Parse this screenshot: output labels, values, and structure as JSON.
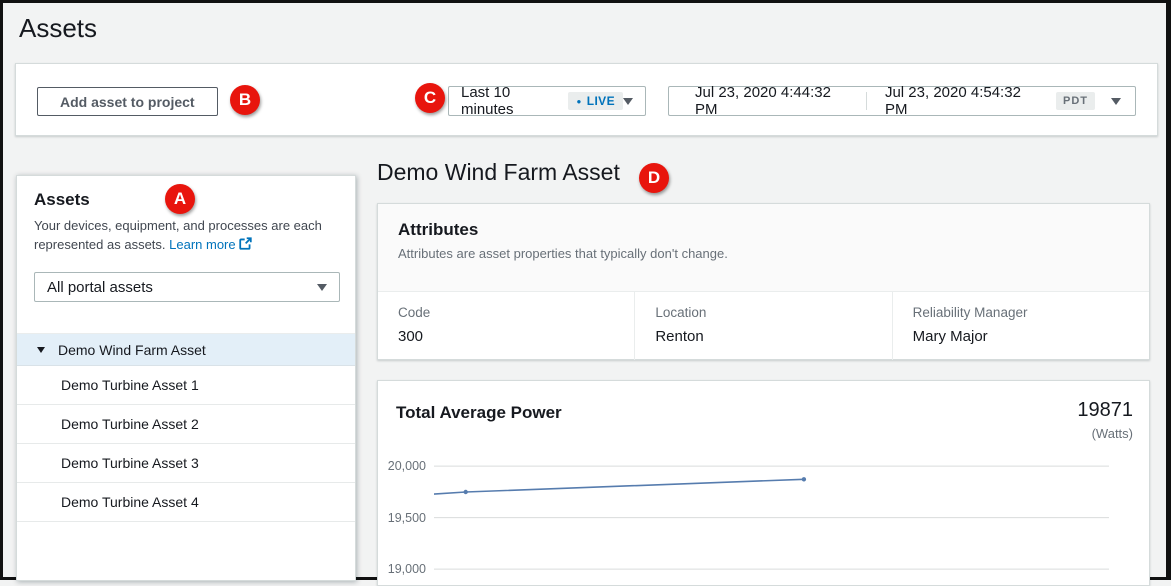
{
  "page": {
    "title": "Assets"
  },
  "callouts": {
    "a": "A",
    "b": "B",
    "c": "C",
    "d": "D"
  },
  "toolbar": {
    "add_button": "Add asset to project",
    "time_range": {
      "label": "Last 10 minutes",
      "live": "LIVE"
    },
    "date_range": {
      "start": "Jul 23, 2020 4:44:32 PM",
      "end": "Jul 23, 2020 4:54:32 PM",
      "tz": "PDT"
    }
  },
  "sidebar": {
    "title": "Assets",
    "description": "Your devices, equipment, and processes are each represented as assets. ",
    "learn_more": "Learn more",
    "filter": "All portal assets",
    "tree": [
      {
        "label": "Demo Wind Farm Asset",
        "selected": true,
        "expanded": true,
        "child": false
      },
      {
        "label": "Demo Turbine Asset 1",
        "selected": false,
        "expanded": false,
        "child": true
      },
      {
        "label": "Demo Turbine Asset 2",
        "selected": false,
        "expanded": false,
        "child": true
      },
      {
        "label": "Demo Turbine Asset 3",
        "selected": false,
        "expanded": false,
        "child": true
      },
      {
        "label": "Demo Turbine Asset 4",
        "selected": false,
        "expanded": false,
        "child": true
      }
    ]
  },
  "main": {
    "title": "Demo Wind Farm Asset",
    "attributes_panel": {
      "title": "Attributes",
      "description": "Attributes are asset properties that typically don't change.",
      "attributes": [
        {
          "label": "Code",
          "value": "300"
        },
        {
          "label": "Location",
          "value": "Renton"
        },
        {
          "label": "Reliability Manager",
          "value": "Mary Major"
        }
      ]
    },
    "chart_panel": {
      "title": "Total Average Power",
      "value": "19871",
      "unit": "(Watts)"
    }
  },
  "chart_data": {
    "type": "line",
    "title": "Total Average Power",
    "unit": "Watts",
    "latest_value": 19871,
    "time_window": "Last 10 minutes (live)",
    "ylim": [
      18855,
      20117
    ],
    "y_ticks": [
      {
        "value": 20000,
        "label": "20,000"
      },
      {
        "value": 19500,
        "label": "19,500"
      },
      {
        "value": 19000,
        "label": "19,000"
      }
    ],
    "grid": true,
    "legend": "none",
    "line_color": "#567cae",
    "points": [
      {
        "x_fraction": 0.0,
        "value": 19728,
        "marker": false
      },
      {
        "x_fraction": 0.047,
        "value": 19748,
        "marker": true
      },
      {
        "x_fraction": 0.548,
        "value": 19871,
        "marker": true
      }
    ]
  },
  "icons": {
    "live_dot": "●"
  },
  "colors": {
    "callout_red": "#e8150d",
    "accent_link": "#0073bb",
    "live_blue": "#0073bb",
    "selected_row_bg": "#e3eff8",
    "card_border": "#d5dbdb",
    "gridline": "#d9dcdc",
    "page_bg": "#f2f3f3",
    "text_primary": "#16191f",
    "text_secondary": "#687078",
    "chart_line": "#567cae"
  }
}
